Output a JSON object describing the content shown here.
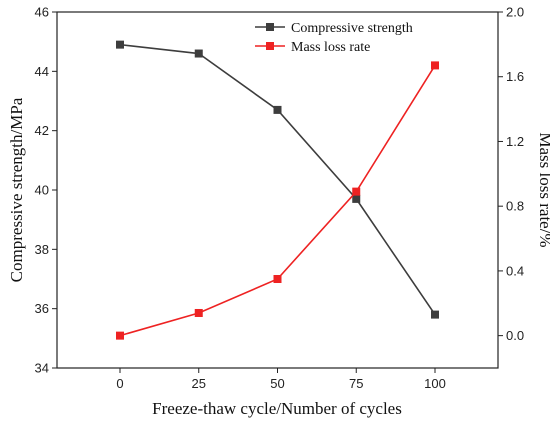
{
  "chart_data": {
    "type": "line",
    "x": [
      0,
      25,
      50,
      75,
      100
    ],
    "xlabel": "Freeze-thaw cycle/Number of cycles",
    "xlim": [
      -20,
      120
    ],
    "xticks": [
      0,
      25,
      50,
      75,
      100
    ],
    "ylabel": "Compressive strength/MPa",
    "ylim": [
      34,
      46
    ],
    "yticks": [
      34,
      36,
      38,
      40,
      42,
      44,
      46
    ],
    "y2label": "Mass loss rate/%",
    "y2lim": [
      -0.2,
      2.0
    ],
    "y2ticks": [
      "0.0",
      "0.4",
      "0.8",
      "1.2",
      "1.6",
      "2.0"
    ],
    "legend_position": "top-right",
    "grid": false,
    "series": [
      {
        "name": "Compressive strength",
        "axis": "left",
        "color": "#3d3d3d",
        "marker": "square",
        "values": [
          44.9,
          44.6,
          42.7,
          39.7,
          35.8
        ]
      },
      {
        "name": "Mass loss rate",
        "axis": "right",
        "color": "#ee2222",
        "marker": "square",
        "values": [
          0.0,
          0.14,
          0.35,
          0.89,
          1.67
        ]
      }
    ]
  }
}
